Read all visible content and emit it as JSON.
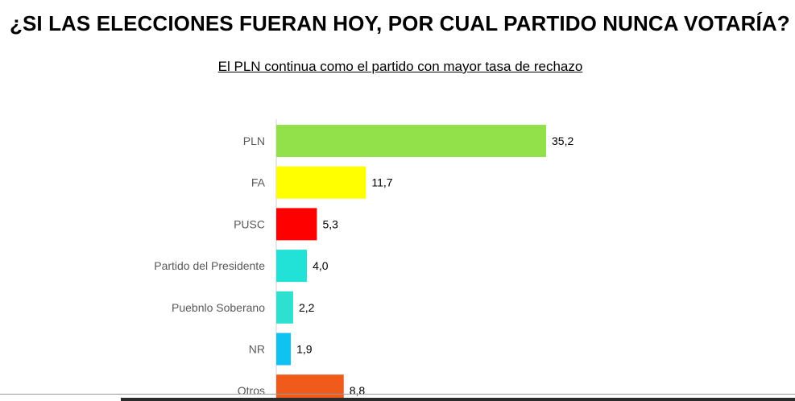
{
  "title": "¿SI LAS ELECCIONES FUERAN HOY, POR CUAL PARTIDO NUNCA VOTARÍA?",
  "subtitle": "El PLN continua como el partido con mayor tasa de rechazo",
  "chart_data": {
    "type": "bar",
    "orientation": "horizontal",
    "categories": [
      "PLN",
      "FA",
      "PUSC",
      "Partido del Presidente",
      "Puebnlo Soberano",
      "NR",
      "Otros"
    ],
    "values": [
      35.2,
      11.7,
      5.3,
      4.0,
      2.2,
      1.9,
      8.8
    ],
    "value_labels": [
      "35,2",
      "11,7",
      "5,3",
      "4,0",
      "2,2",
      "1,9",
      "8,8"
    ],
    "colors": [
      "#92e04a",
      "#ffff00",
      "#ff0000",
      "#22e2d8",
      "#2ee0d0",
      "#10c2f0",
      "#f05a1a"
    ],
    "xlim": [
      0,
      35.2
    ],
    "grid": false,
    "legend": "none"
  }
}
